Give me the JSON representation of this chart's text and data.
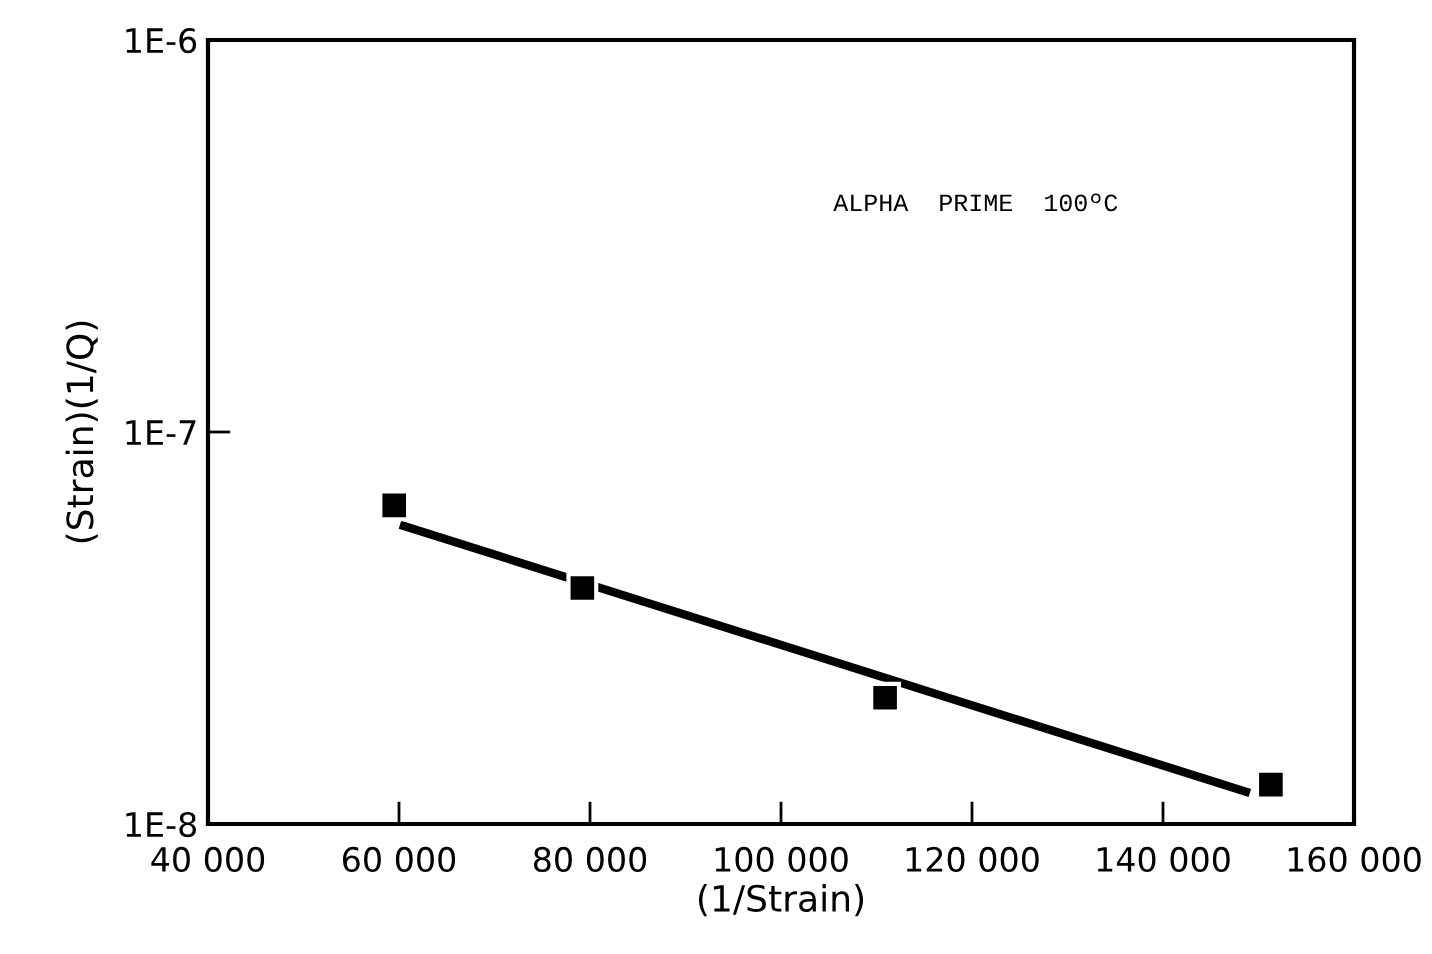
{
  "chart_data": {
    "type": "scatter",
    "xlabel": "(1/Strain)",
    "ylabel": "(Strain)(1/Q)",
    "log": "y",
    "annotations": [
      "ALPHA  PRIME  100ºC"
    ],
    "xlim": [
      40000,
      160000
    ],
    "xticks": [
      {
        "value": 40000,
        "label": "40 000"
      },
      {
        "value": 60000,
        "label": "60 000"
      },
      {
        "value": 80000,
        "label": "80 000"
      },
      {
        "value": 100000,
        "label": "100 000"
      },
      {
        "value": 120000,
        "label": "120 000"
      },
      {
        "value": 140000,
        "label": "140 000"
      },
      {
        "value": 160000,
        "label": "160 000"
      }
    ],
    "ylim": [
      1e-08,
      1e-06
    ],
    "yticks": [
      {
        "value": 1e-08,
        "label": "1E-8"
      },
      {
        "value": 1e-07,
        "label": "1E-7"
      },
      {
        "value": 1e-06,
        "label": "1E-6"
      }
    ],
    "grid": false,
    "legend": false,
    "series": [
      {
        "color": "#000000",
        "marker": "square",
        "x": [
          59500,
          79200,
          110900,
          151300
        ],
        "values": [
          6.5e-08,
          4e-08,
          2.1e-08,
          1.26e-08
        ]
      },
      {
        "type": "line",
        "color": "#000000",
        "marker": "none",
        "line_style": "solid",
        "x": [
          60100,
          149100
        ],
        "values": [
          5.8e-08,
          1.2e-08
        ]
      }
    ]
  }
}
